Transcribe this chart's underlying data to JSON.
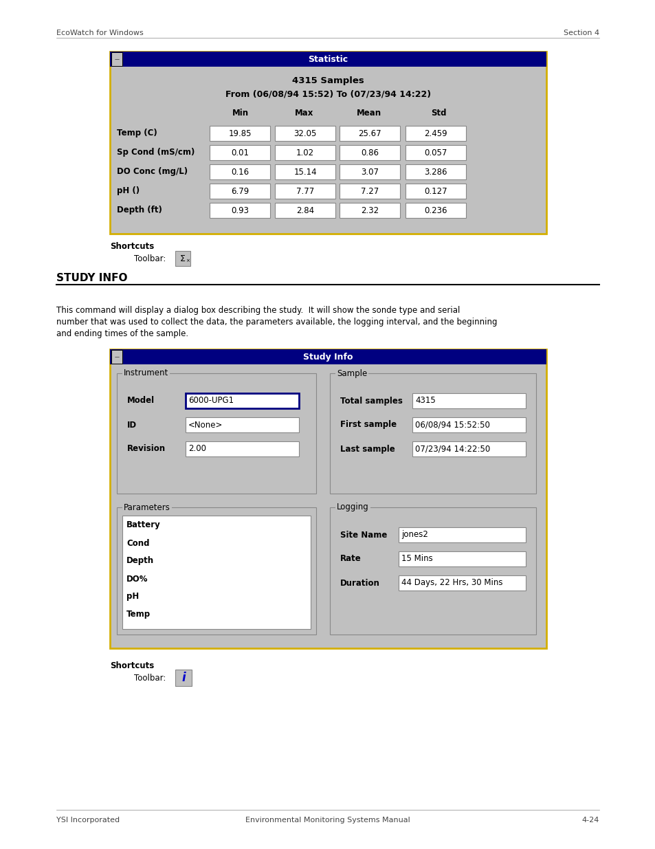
{
  "page_header_left": "EcoWatch for Windows",
  "page_header_right": "Section 4",
  "page_footer_left": "YSI Incorporated",
  "page_footer_center": "Environmental Monitoring Systems Manual",
  "page_footer_right": "4-24",
  "section_heading": "STUDY INFO",
  "body_text_line1": "This command will display a dialog box describing the study.  It will show the sonde type and serial",
  "body_text_line2": "number that was used to collect the data, the parameters available, the logging interval, and the beginning",
  "body_text_line3": "and ending times of the sample.",
  "shortcuts_label": "Shortcuts",
  "toolbar_label": "Toolbar:",
  "win_bg": "#c0c0c0",
  "win_titlebar_color": "#000080",
  "win_titlebar_text": "#ffffff",
  "win_outline": "#d4af00",
  "statistic_title": "Statistic",
  "statistic_samples": "4315 Samples",
  "statistic_from": "From (06/08/94 15:52) To (07/23/94 14:22)",
  "stat_cols": [
    "Min",
    "Max",
    "Mean",
    "Std"
  ],
  "stat_rows": [
    "Temp (C)",
    "Sp Cond (mS/cm)",
    "DO Conc (mg/L)",
    "pH ()",
    "Depth (ft)"
  ],
  "stat_data": [
    [
      "19.85",
      "32.05",
      "25.67",
      "2.459"
    ],
    [
      "0.01",
      "1.02",
      "0.86",
      "0.057"
    ],
    [
      "0.16",
      "15.14",
      "3.07",
      "3.286"
    ],
    [
      "6.79",
      "7.77",
      "7.27",
      "0.127"
    ],
    [
      "0.93",
      "2.84",
      "2.32",
      "0.236"
    ]
  ],
  "study_title": "Study Info",
  "instrument_label": "Instrument",
  "model_label": "Model",
  "model_value": "6000-UPG1",
  "id_label": "ID",
  "id_value": "<None>",
  "revision_label": "Revision",
  "revision_value": "2.00",
  "parameters_label": "Parameters",
  "parameters_list": [
    "Battery",
    "Cond",
    "Depth",
    "DO%",
    "pH",
    "Temp"
  ],
  "sample_label": "Sample",
  "total_samples_label": "Total samples",
  "total_samples_value": "4315",
  "first_sample_label": "First sample",
  "first_sample_value": "06/08/94 15:52:50",
  "last_sample_label": "Last sample",
  "last_sample_value": "07/23/94 14:22:50",
  "logging_label": "Logging",
  "site_name_label": "Site Name",
  "site_name_value": "jones2",
  "rate_label": "Rate",
  "rate_value": "15 Mins",
  "duration_label": "Duration",
  "duration_value": "44 Days, 22 Hrs, 30 Mins",
  "bg_color": "#ffffff",
  "gray_text": "#444444"
}
